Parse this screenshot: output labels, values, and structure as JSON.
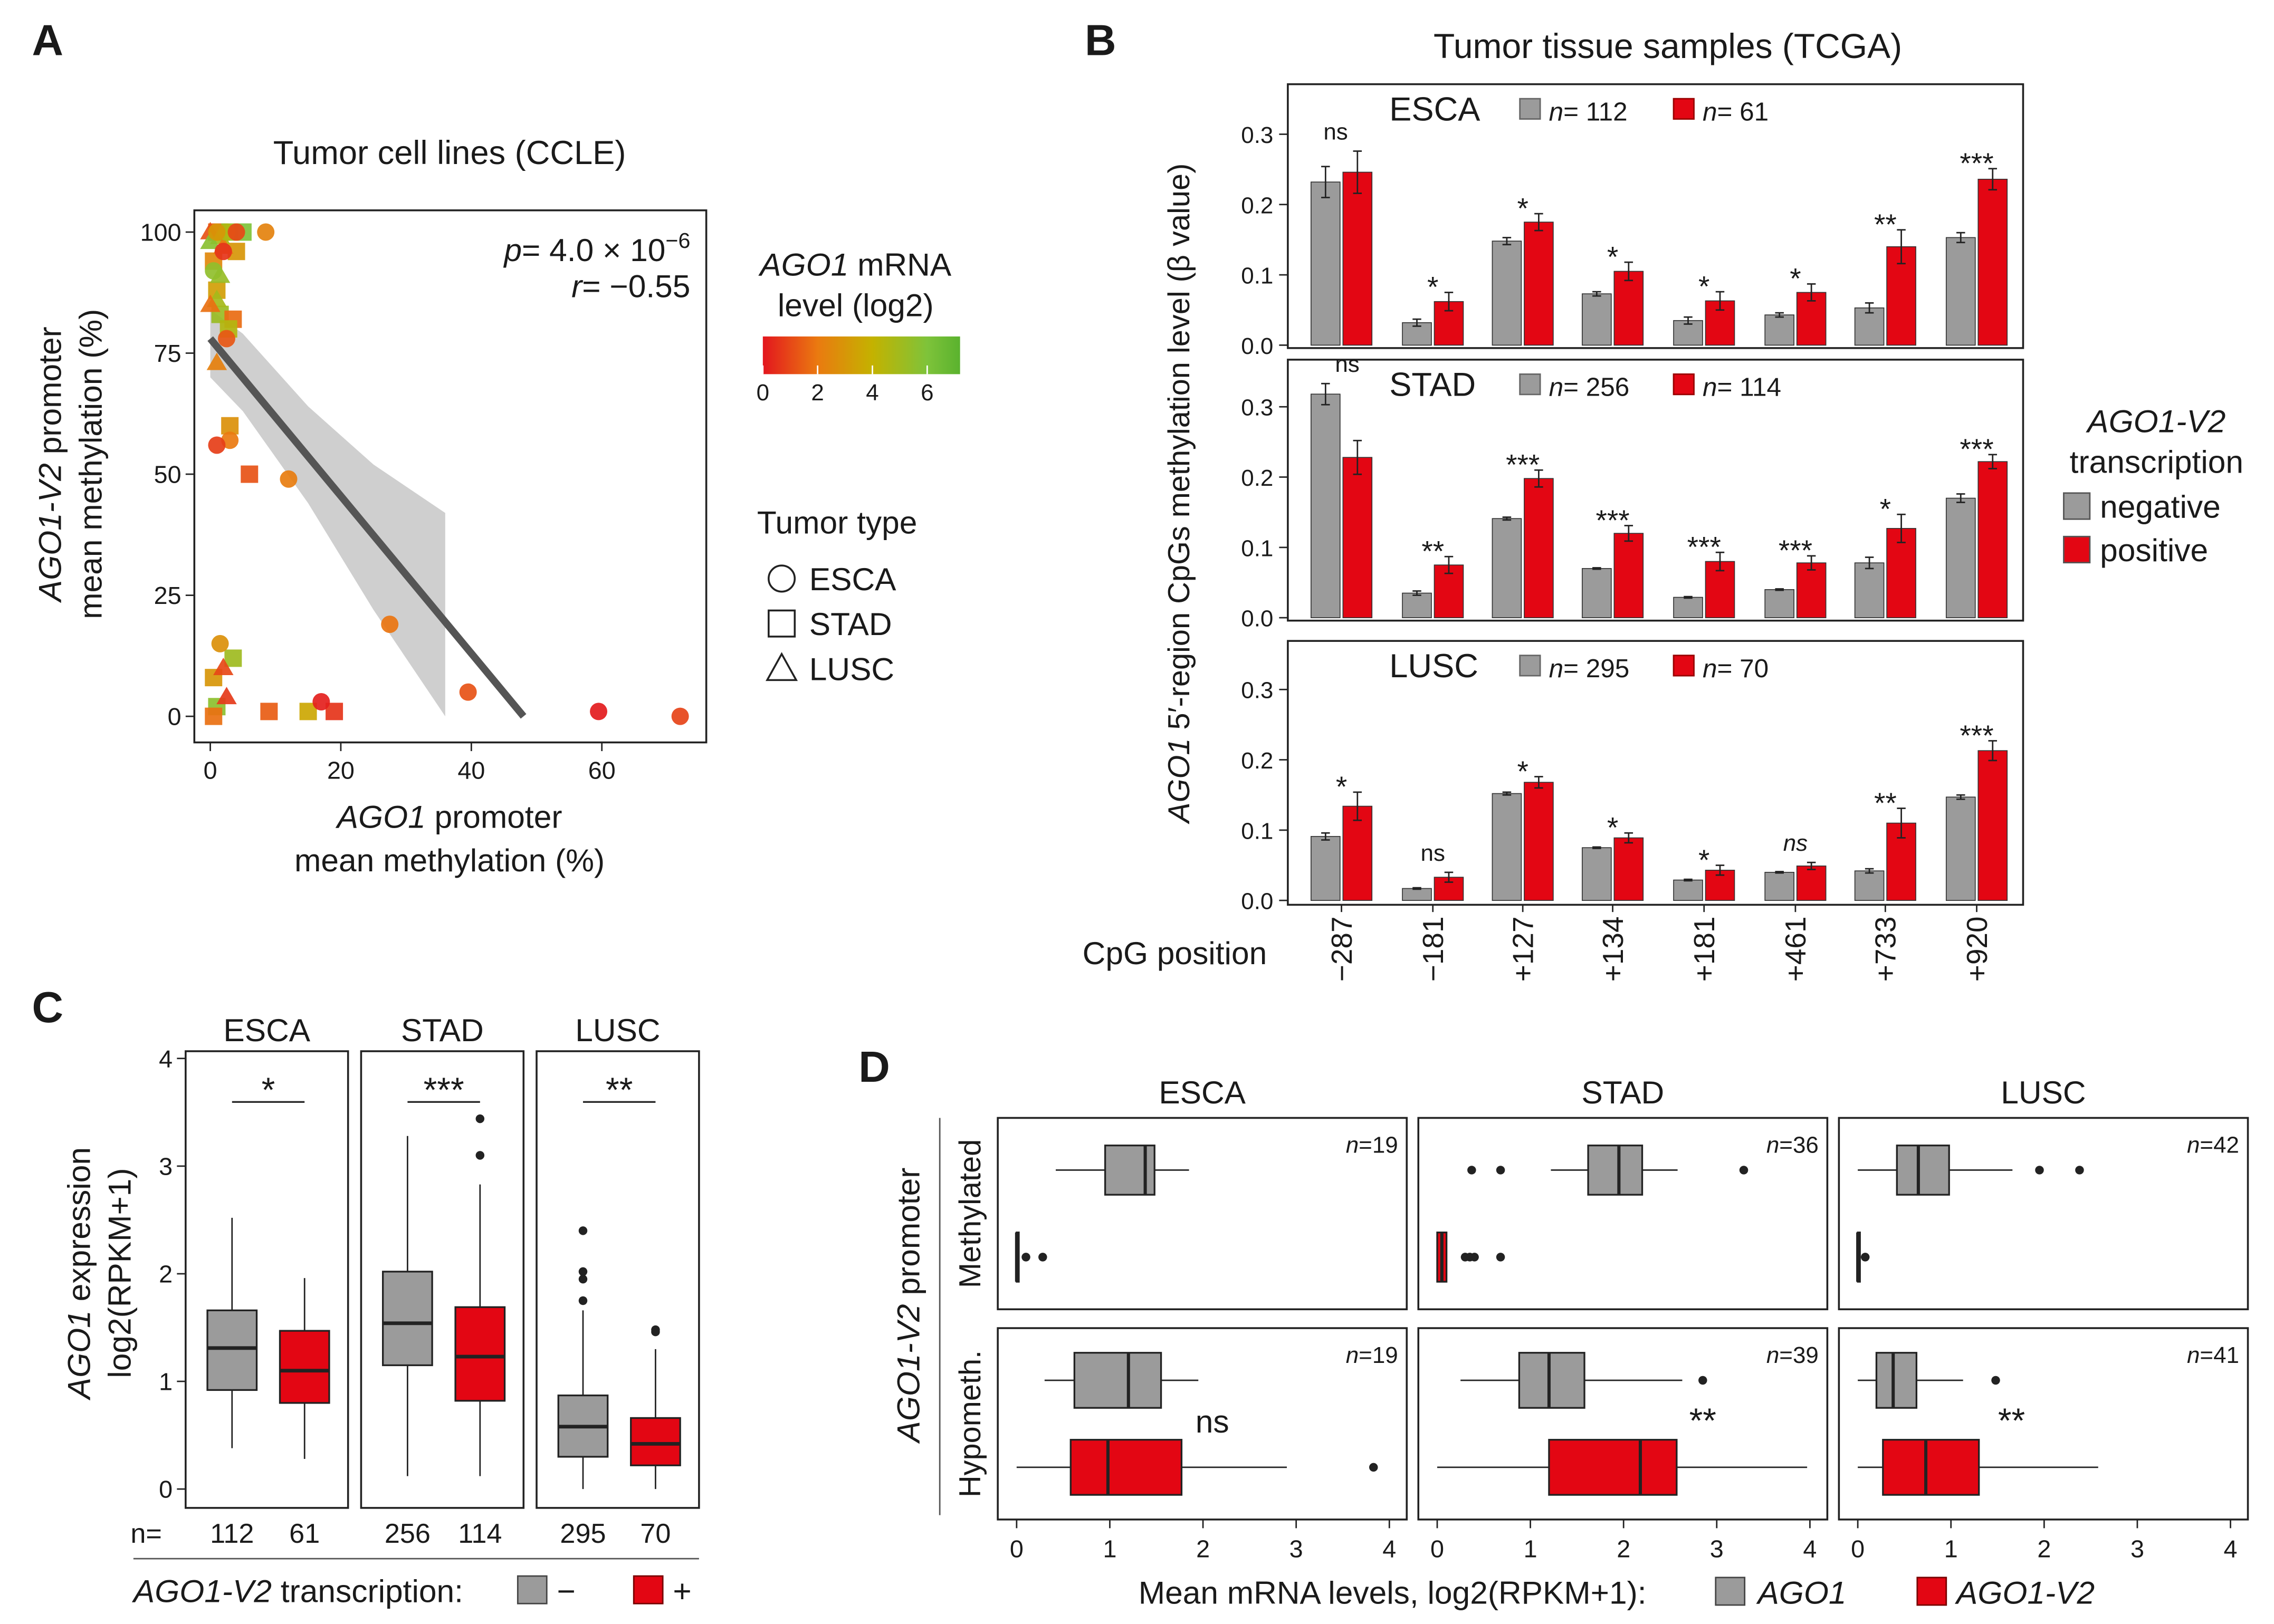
{
  "colors": {
    "negative": "#9b9b9b",
    "positive": "#e30613",
    "frame": "#222222",
    "band": "#cfcfcf",
    "fit_line": "#555555"
  },
  "chart_data": [
    {
      "type": "scatter",
      "panel_label": "A",
      "title": "Tumor cell lines (CCLE)",
      "xlabel": {
        "gene": "AGO1",
        "rest": " promoter",
        "line2": "mean methylation (%)"
      },
      "ylabel": {
        "gene": "AGO1-V2",
        "rest": " promoter",
        "line2": "mean methylation (%)"
      },
      "xticks": [
        "0",
        "20",
        "40",
        "60"
      ],
      "yticks": [
        "0",
        "25",
        "50",
        "75",
        "100"
      ],
      "xlim": [
        -2.5,
        76
      ],
      "ylim": [
        -5,
        105
      ],
      "stats": {
        "p_symbol": "p",
        "p_text": "= 4.0 × 10",
        "p_exp": "−6",
        "r_symbol": "r",
        "r_text": "= −0.55"
      },
      "colorbar": {
        "gene": "AGO1",
        "rest": " mRNA",
        "line2": "level (log2)",
        "ticks": [
          "0",
          "2",
          "4",
          "6"
        ],
        "range": [
          0,
          7.2
        ],
        "stops": [
          [
            0,
            "#e3161e"
          ],
          [
            2,
            "#ea7a10"
          ],
          [
            4,
            "#c4b200"
          ],
          [
            6,
            "#7ec33a"
          ],
          [
            7.2,
            "#5ab22e"
          ]
        ]
      },
      "shape_legend": {
        "title": "Tumor type",
        "items": [
          {
            "label": "ESCA",
            "shape": "circle"
          },
          {
            "label": "STAD",
            "shape": "square"
          },
          {
            "label": "LUSC",
            "shape": "triangle"
          }
        ]
      },
      "points": {
        "ESCA": [
          [
            8.5,
            100,
            2.3
          ],
          [
            2.5,
            100,
            4.6
          ],
          [
            2,
            96,
            0.6
          ],
          [
            0.5,
            92,
            5.5
          ],
          [
            4,
            100,
            1
          ],
          [
            1,
            100,
            3
          ],
          [
            2.5,
            78,
            1.3
          ],
          [
            3,
            57,
            2
          ],
          [
            1,
            56,
            0.8
          ],
          [
            12,
            49,
            2.1
          ],
          [
            27.5,
            19,
            1.9
          ],
          [
            1.5,
            15,
            2.8
          ],
          [
            17,
            3,
            0.2
          ],
          [
            39.5,
            5,
            1.2
          ],
          [
            59.5,
            1,
            0.1
          ],
          [
            72,
            0,
            0.9
          ]
        ],
        "STAD": [
          [
            5,
            100,
            6
          ],
          [
            1,
            100,
            1.5
          ],
          [
            3,
            100,
            5.5
          ],
          [
            4,
            96,
            3
          ],
          [
            0.5,
            94,
            2.5
          ],
          [
            1,
            88,
            3.3
          ],
          [
            1.5,
            83,
            5.2
          ],
          [
            3.5,
            82,
            1.7
          ],
          [
            2.8,
            80,
            4.5
          ],
          [
            3,
            60,
            2.8
          ],
          [
            6,
            50,
            1.2
          ],
          [
            3.5,
            12,
            5.1
          ],
          [
            0.5,
            8,
            3
          ],
          [
            1,
            2,
            5.6
          ],
          [
            0.5,
            0,
            1.8
          ],
          [
            9,
            1,
            1.4
          ],
          [
            15,
            1,
            3.6
          ],
          [
            19,
            1,
            0.6
          ]
        ],
        "LUSC": [
          [
            0,
            100,
            1.2
          ],
          [
            1.5,
            99,
            4.8
          ],
          [
            2,
            97,
            2
          ],
          [
            0,
            98,
            5.7
          ],
          [
            1.5,
            91,
            5.3
          ],
          [
            1,
            86,
            4.9
          ],
          [
            0,
            85,
            1.8
          ],
          [
            1,
            73,
            2.2
          ],
          [
            2,
            10,
            1
          ],
          [
            2.5,
            4,
            0.7
          ]
        ]
      },
      "regression": {
        "x": [
          0,
          48
        ],
        "y": [
          78,
          0
        ]
      },
      "ci_band": {
        "upper": [
          [
            0,
            84
          ],
          [
            5,
            79
          ],
          [
            15,
            64
          ],
          [
            25,
            52
          ],
          [
            36,
            42
          ]
        ],
        "lower": [
          [
            36,
            0
          ],
          [
            25,
            22
          ],
          [
            15,
            44
          ],
          [
            5,
            63
          ],
          [
            0,
            70
          ]
        ]
      }
    },
    {
      "type": "bar",
      "panel_label": "B",
      "title": "Tumor tissue samples (TCGA)",
      "ylabel": {
        "gene": "AGO1",
        "rest": " 5′-region CpGs methylation level (β value)"
      },
      "xlabel": "CpG position",
      "categories": [
        "−287",
        "−181",
        "+127",
        "+134",
        "+181",
        "+461",
        "+733",
        "+920"
      ],
      "yticks": [
        "0.0",
        "0.1",
        "0.2",
        "0.3"
      ],
      "ylim": [
        0,
        0.37
      ],
      "legend": {
        "gene": "AGO1-V2",
        "line2": "transcription",
        "items": [
          "negative",
          "positive"
        ]
      },
      "n_symbol": "n",
      "facets": [
        {
          "name": "ESCA",
          "n_negative": "= 112",
          "n_positive": "= 61",
          "negative": [
            0.232,
            0.032,
            0.148,
            0.073,
            0.035,
            0.043,
            0.053,
            0.153
          ],
          "negative_err": [
            0.022,
            0.005,
            0.005,
            0.003,
            0.005,
            0.003,
            0.007,
            0.007
          ],
          "positive": [
            0.246,
            0.062,
            0.175,
            0.105,
            0.063,
            0.075,
            0.14,
            0.236
          ],
          "positive_err": [
            0.03,
            0.013,
            0.012,
            0.013,
            0.013,
            0.012,
            0.024,
            0.015
          ],
          "significance": [
            "ns",
            "*",
            "*",
            "*",
            "*",
            "*",
            "**",
            "***"
          ]
        },
        {
          "name": "STAD",
          "n_negative": "= 256",
          "n_positive": "= 114",
          "negative": [
            0.318,
            0.035,
            0.141,
            0.07,
            0.029,
            0.04,
            0.078,
            0.17
          ],
          "negative_err": [
            0.015,
            0.003,
            0.002,
            0.001,
            0.001,
            0.001,
            0.008,
            0.006
          ],
          "positive": [
            0.228,
            0.075,
            0.198,
            0.12,
            0.08,
            0.078,
            0.127,
            0.222
          ],
          "positive_err": [
            0.024,
            0.012,
            0.012,
            0.011,
            0.013,
            0.01,
            0.02,
            0.01
          ],
          "significance": [
            "ns",
            "**",
            "***",
            "***",
            "***",
            "***",
            "*",
            "***"
          ]
        },
        {
          "name": "LUSC",
          "n_negative": "= 295",
          "n_positive": "= 70",
          "negative": [
            0.091,
            0.017,
            0.152,
            0.075,
            0.029,
            0.04,
            0.042,
            0.147
          ],
          "negative_err": [
            0.005,
            0.001,
            0.002,
            0.001,
            0.001,
            0.001,
            0.003,
            0.003
          ],
          "positive": [
            0.134,
            0.033,
            0.168,
            0.089,
            0.043,
            0.049,
            0.11,
            0.213
          ],
          "positive_err": [
            0.02,
            0.007,
            0.008,
            0.007,
            0.007,
            0.005,
            0.021,
            0.014
          ],
          "significance": [
            "*",
            "ns",
            "*",
            "*",
            "*",
            "ns",
            "**",
            "***"
          ]
        }
      ]
    },
    {
      "type": "boxplot",
      "panel_label": "C",
      "ylabel": {
        "gene": "AGO1",
        "rest": " expression",
        "line2": "log2(RPKM+1)"
      },
      "yticks": [
        "0",
        "1",
        "2",
        "3",
        "4"
      ],
      "ylim": [
        -0.2,
        4.1
      ],
      "n_prefix": "n=",
      "legend": {
        "gene": "AGO1-V2",
        "rest": " transcription:",
        "negative": "−",
        "positive": "+"
      },
      "facets": [
        {
          "name": "ESCA",
          "significance": "*",
          "groups": [
            {
              "n": "112",
              "whisker_low": 0.38,
              "q1": 0.92,
              "median": 1.31,
              "q3": 1.66,
              "whisker_high": 2.52,
              "outliers": []
            },
            {
              "n": "61",
              "whisker_low": 0.28,
              "q1": 0.8,
              "median": 1.1,
              "q3": 1.47,
              "whisker_high": 1.96,
              "outliers": []
            }
          ]
        },
        {
          "name": "STAD",
          "significance": "***",
          "groups": [
            {
              "n": "256",
              "whisker_low": 0.12,
              "q1": 1.15,
              "median": 1.54,
              "q3": 2.02,
              "whisker_high": 3.28,
              "outliers": []
            },
            {
              "n": "114",
              "whisker_low": 0.12,
              "q1": 0.82,
              "median": 1.23,
              "q3": 1.69,
              "whisker_high": 2.83,
              "outliers": [
                3.1,
                3.44
              ]
            }
          ]
        },
        {
          "name": "LUSC",
          "significance": "**",
          "groups": [
            {
              "n": "295",
              "whisker_low": 0.0,
              "q1": 0.3,
              "median": 0.58,
              "q3": 0.87,
              "whisker_high": 1.66,
              "outliers": [
                1.75,
                1.95,
                2.02,
                2.4
              ]
            },
            {
              "n": "70",
              "whisker_low": 0.0,
              "q1": 0.22,
              "median": 0.42,
              "q3": 0.66,
              "whisker_high": 1.3,
              "outliers": [
                1.46,
                1.48
              ]
            }
          ]
        }
      ]
    },
    {
      "type": "boxplot",
      "panel_label": "D",
      "orientation": "horizontal",
      "xticks": [
        "0",
        "1",
        "2",
        "3",
        "4"
      ],
      "xlim": [
        -0.2,
        4.2
      ],
      "row_title": {
        "gene": "AGO1-V2",
        "rest": " promoter"
      },
      "rows": [
        "Methylated",
        "Hypometh."
      ],
      "columns": [
        "ESCA",
        "STAD",
        "LUSC"
      ],
      "legend": {
        "prefix": "Mean mRNA levels, log2(RPKM+1):",
        "negative": "AGO1",
        "positive": "AGO1-V2"
      },
      "n_symbol": "n",
      "cells": [
        [
          {
            "n": "=19",
            "significance": "",
            "negative": {
              "whisker_low": 0.42,
              "q1": 0.95,
              "median": 1.38,
              "q3": 1.48,
              "whisker_high": 1.85,
              "outliers": []
            },
            "positive": {
              "whisker_low": 0,
              "q1": 0,
              "median": 0,
              "q3": 0,
              "whisker_high": 0,
              "outliers": [
                0.1,
                0.28
              ]
            }
          },
          {
            "n": "=36",
            "significance": "",
            "negative": {
              "whisker_low": 1.22,
              "q1": 1.62,
              "median": 1.95,
              "q3": 2.2,
              "whisker_high": 2.58,
              "outliers": [
                0.37,
                0.68,
                3.29
              ]
            },
            "positive": {
              "whisker_low": 0,
              "q1": 0,
              "median": 0.05,
              "q3": 0.1,
              "whisker_high": 0.1,
              "outliers": [
                0.3,
                0.35,
                0.4,
                0.68
              ]
            }
          },
          {
            "n": "=42",
            "significance": "",
            "negative": {
              "whisker_low": 0.0,
              "q1": 0.42,
              "median": 0.65,
              "q3": 0.98,
              "whisker_high": 1.66,
              "outliers": [
                1.95,
                2.38
              ]
            },
            "positive": {
              "whisker_low": 0,
              "q1": 0,
              "median": 0,
              "q3": 0,
              "whisker_high": 0,
              "outliers": [
                0.08
              ]
            }
          }
        ],
        [
          {
            "n": "=19",
            "significance": "ns",
            "negative": {
              "whisker_low": 0.3,
              "q1": 0.62,
              "median": 1.2,
              "q3": 1.55,
              "whisker_high": 1.95,
              "outliers": []
            },
            "positive": {
              "whisker_low": 0,
              "q1": 0.58,
              "median": 0.98,
              "q3": 1.77,
              "whisker_high": 2.9,
              "outliers": [
                3.83
              ]
            }
          },
          {
            "n": "=39",
            "significance": "**",
            "negative": {
              "whisker_low": 0.25,
              "q1": 0.88,
              "median": 1.2,
              "q3": 1.58,
              "whisker_high": 2.63,
              "outliers": [
                2.85
              ]
            },
            "positive": {
              "whisker_low": 0,
              "q1": 1.2,
              "median": 2.18,
              "q3": 2.57,
              "whisker_high": 3.97,
              "outliers": []
            }
          },
          {
            "n": "=41",
            "significance": "**",
            "negative": {
              "whisker_low": 0,
              "q1": 0.2,
              "median": 0.38,
              "q3": 0.63,
              "whisker_high": 1.13,
              "outliers": [
                1.48
              ]
            },
            "positive": {
              "whisker_low": 0,
              "q1": 0.27,
              "median": 0.73,
              "q3": 1.3,
              "whisker_high": 2.58,
              "outliers": []
            }
          }
        ]
      ]
    }
  ]
}
